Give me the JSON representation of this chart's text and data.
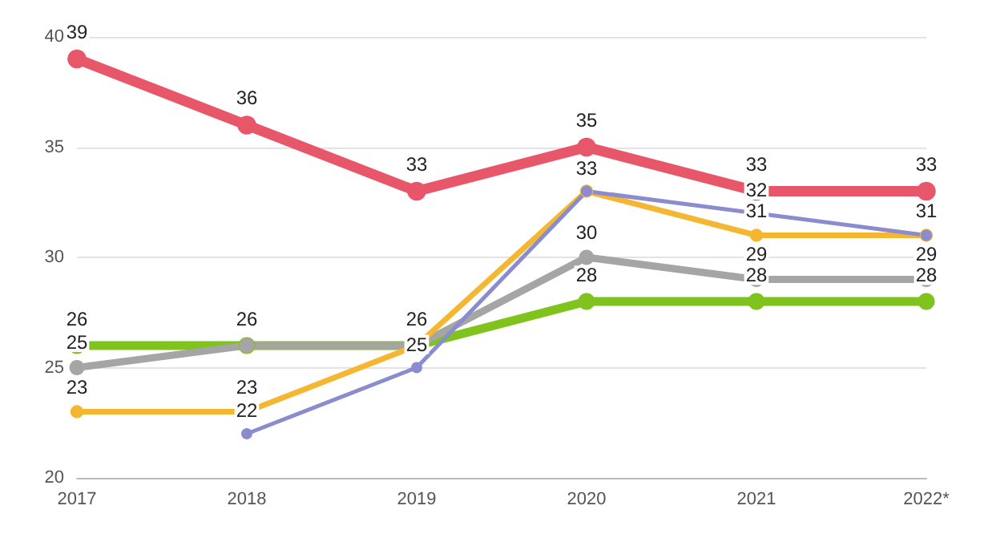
{
  "chart_data": {
    "type": "line",
    "categories": [
      "2017",
      "2018",
      "2019",
      "2020",
      "2021",
      "2022*"
    ],
    "series": [
      {
        "color": "#e8566a",
        "values": [
          39,
          36,
          33,
          35,
          33,
          33
        ],
        "value_labels": [
          "39",
          "36",
          "33",
          "35",
          "33",
          "33"
        ]
      },
      {
        "color": "#7fc31c",
        "values": [
          26,
          26,
          26,
          28,
          28,
          28
        ],
        "value_labels": [
          "26",
          "26",
          "26",
          "28",
          "28",
          "28"
        ]
      },
      {
        "color": "#a5a5a5",
        "values": [
          25,
          26,
          26,
          30,
          29,
          29
        ],
        "value_labels": [
          "25",
          null,
          null,
          "30",
          "29",
          "29"
        ]
      },
      {
        "color": "#f5b731",
        "values": [
          23,
          23,
          26,
          33,
          31,
          31
        ],
        "value_labels": [
          "23",
          "23",
          null,
          null,
          "31",
          "31"
        ]
      },
      {
        "color": "#8b8bd0",
        "values": [
          null,
          22,
          25,
          33,
          32,
          31
        ],
        "value_labels": [
          null,
          "22",
          "25",
          "33",
          "32",
          null
        ]
      }
    ],
    "ylim": [
      20,
      40
    ],
    "yticks": [
      20,
      25,
      30,
      35,
      40
    ],
    "grid": "y",
    "marker": "circle",
    "line_style": "solid"
  }
}
